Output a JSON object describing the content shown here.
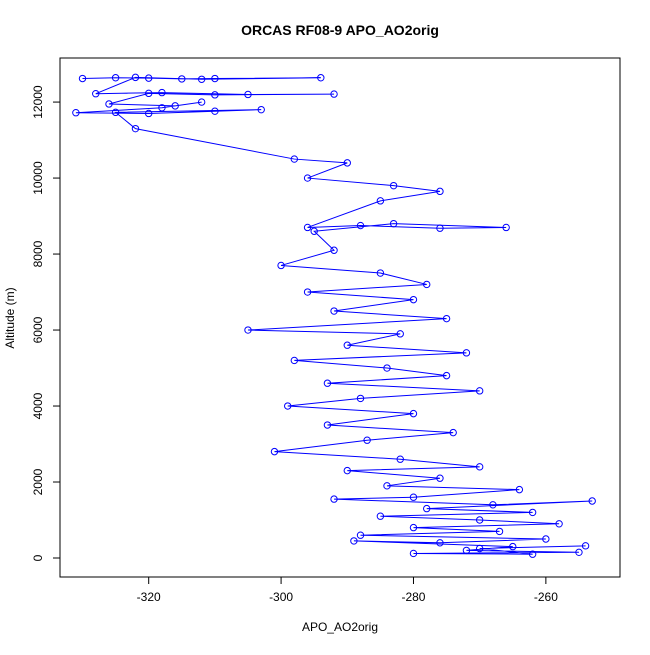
{
  "chart_data": {
    "type": "line",
    "title": "ORCAS RF08-9 APO_AO2orig",
    "x_label": "APO_AO2orig",
    "y_label": "Altitude (m)",
    "xlim": [
      -333.4,
      -248.8
    ],
    "ylim": [
      -500,
      13160
    ],
    "xticks": [
      -320,
      -300,
      -280,
      -260
    ],
    "yticks": [
      0,
      2000,
      4000,
      6000,
      8000,
      10000,
      12000
    ],
    "grid": false,
    "marker": "open-circle",
    "x": [
      -330,
      -325,
      -320,
      -315,
      -310,
      -294,
      -312,
      -322,
      -328,
      -318,
      -305,
      -292,
      -310,
      -320,
      -326,
      -316,
      -312,
      -318,
      -331,
      -320,
      -310,
      -303,
      -325,
      -322,
      -298,
      -290,
      -296,
      -283,
      -276,
      -285,
      -296,
      -288,
      -276,
      -266,
      -283,
      -295,
      -292,
      -300,
      -285,
      -278,
      -296,
      -280,
      -292,
      -275,
      -305,
      -282,
      -290,
      -272,
      -298,
      -284,
      -275,
      -293,
      -270,
      -288,
      -299,
      -280,
      -293,
      -274,
      -287,
      -301,
      -282,
      -270,
      -290,
      -276,
      -284,
      -264,
      -280,
      -292,
      -268,
      -253,
      -278,
      -262,
      -285,
      -270,
      -258,
      -280,
      -267,
      -288,
      -260,
      -276,
      -289,
      -265,
      -272,
      -255,
      -280,
      -262,
      -270,
      -254
    ],
    "series": [
      {
        "color": "#0000ff",
        "values": [
          12620,
          12640,
          12630,
          12610,
          12620,
          12640,
          12600,
          12650,
          12220,
          12250,
          12200,
          12210,
          12190,
          12230,
          11950,
          11900,
          12000,
          11850,
          11720,
          11700,
          11760,
          11800,
          11730,
          11300,
          10500,
          10400,
          10000,
          9800,
          9650,
          9400,
          8700,
          8750,
          8680,
          8700,
          8800,
          8600,
          8100,
          7700,
          7500,
          7200,
          7000,
          6800,
          6500,
          6300,
          6000,
          5900,
          5600,
          5400,
          5200,
          5000,
          4800,
          4600,
          4400,
          4200,
          4000,
          3800,
          3500,
          3300,
          3100,
          2800,
          2600,
          2400,
          2300,
          2100,
          1900,
          1800,
          1600,
          1550,
          1400,
          1500,
          1300,
          1200,
          1100,
          1000,
          900,
          800,
          700,
          600,
          500,
          400,
          450,
          300,
          200,
          150,
          120,
          100,
          250,
          320
        ]
      }
    ]
  }
}
